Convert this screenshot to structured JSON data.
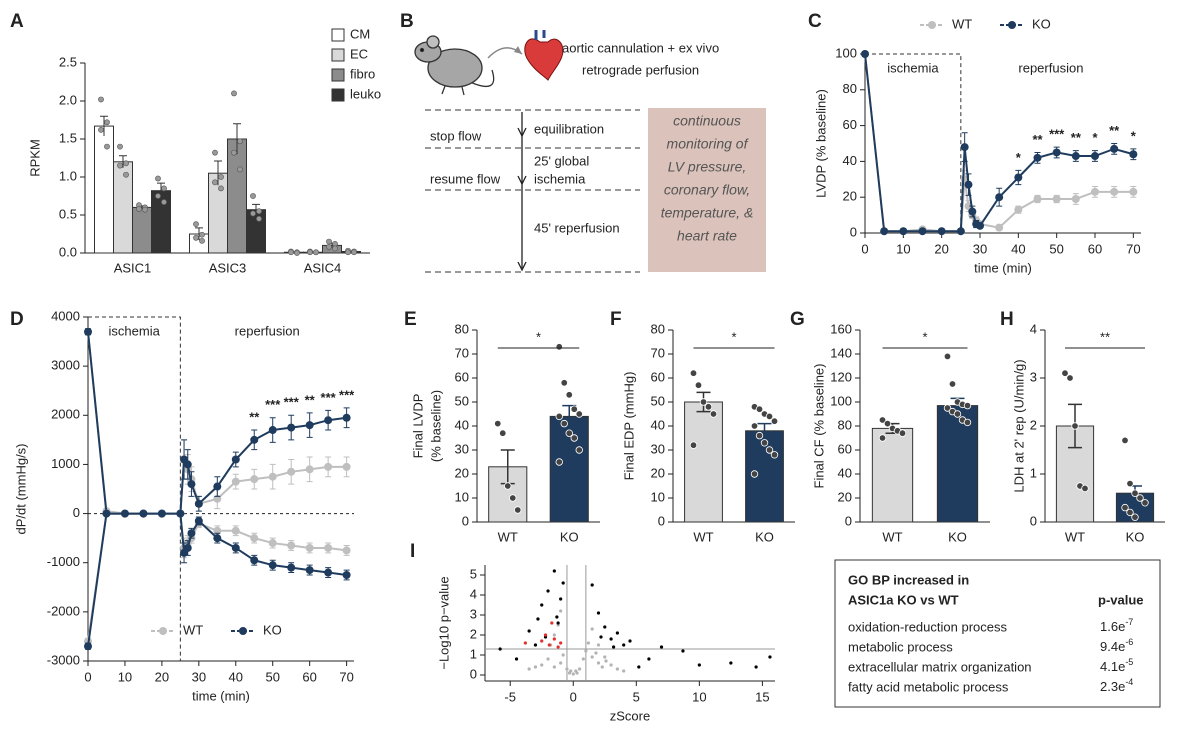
{
  "chart_data": [
    {
      "panel": "A",
      "type": "grouped_bar",
      "ylabel": "RPKM",
      "categories": [
        "ASIC1",
        "ASIC3",
        "ASIC4"
      ],
      "series": [
        {
          "name": "CM",
          "color": "#ffffff",
          "values": [
            1.67,
            0.25,
            0.01
          ],
          "errors": [
            0.13,
            0.08,
            0.005
          ],
          "points": [
            [
              2.02,
              1.72,
              1.62,
              1.4
            ],
            [
              0.38,
              0.24,
              0.2,
              0.16
            ],
            [
              0.02,
              0.01,
              0.01,
              0
            ]
          ]
        },
        {
          "name": "EC",
          "color": "#d9d9d9",
          "values": [
            1.2,
            1.05,
            0.01
          ],
          "errors": [
            0.08,
            0.16,
            0.005
          ],
          "points": [
            [
              1.4,
              1.18,
              1.15,
              1.03
            ],
            [
              1.32,
              1.0,
              0.93,
              0.85
            ],
            [
              0.02,
              0.01,
              0.01,
              0.01
            ]
          ]
        },
        {
          "name": "fibro",
          "color": "#8c8c8c",
          "values": [
            0.6,
            1.5,
            0.1
          ],
          "errors": [
            0.02,
            0.2,
            0.03
          ],
          "points": [
            [
              0.63,
              0.6,
              0.58,
              0.57
            ],
            [
              2.1,
              1.47,
              1.32,
              1.1
            ],
            [
              0.15,
              0.12,
              0.08,
              0.06
            ]
          ]
        },
        {
          "name": "leuko",
          "color": "#333333",
          "values": [
            0.82,
            0.57,
            0.02
          ],
          "errors": [
            0.1,
            0.07,
            0.005
          ],
          "points": [
            [
              0.98,
              0.85,
              0.75,
              0.67
            ],
            [
              0.75,
              0.55,
              0.52,
              0.45
            ],
            [
              0.03,
              0.02,
              0.01,
              0.01
            ]
          ]
        }
      ],
      "ylim": [
        0,
        2.5
      ],
      "yticks": [
        {
          "value": 0,
          "label": "0.0"
        },
        0.5,
        {
          "value": 1,
          "label": "1.0"
        },
        1.5,
        {
          "value": 2,
          "label": "2.0"
        },
        2.5
      ]
    },
    {
      "panel": "C",
      "type": "line",
      "ylabel": "LVDP (% baseline)",
      "xlabel": "time (min)",
      "legend": "top",
      "annotations": [
        "ischemia",
        "reperfusion"
      ],
      "ischemia_span": [
        0,
        25
      ],
      "x": [
        0,
        5,
        10,
        15,
        20,
        25,
        26,
        27,
        28,
        29,
        30,
        35,
        40,
        45,
        50,
        55,
        60,
        65,
        70
      ],
      "series": [
        {
          "name": "WT",
          "color": "#bfbfbf",
          "values": [
            100,
            1,
            1,
            2,
            1,
            1,
            30,
            15,
            10,
            7,
            5,
            3,
            13,
            19,
            19,
            19,
            23,
            23,
            23
          ],
          "errors": [
            0,
            0,
            0,
            0,
            0,
            0,
            5,
            3,
            2,
            2,
            1,
            1,
            2,
            2,
            2,
            3,
            3,
            3,
            3
          ]
        },
        {
          "name": "KO",
          "color": "#1f3c5e",
          "values": [
            100,
            1,
            1,
            1,
            1,
            1,
            48,
            27,
            12,
            5,
            4,
            20,
            31,
            42,
            45,
            43,
            43,
            47,
            44
          ],
          "errors": [
            0,
            0,
            0,
            0,
            0,
            0,
            8,
            6,
            3,
            2,
            1,
            5,
            4,
            3,
            3,
            3,
            3,
            3,
            3
          ]
        }
      ],
      "significance": [
        {
          "x": 40,
          "label": "*"
        },
        {
          "x": 45,
          "label": "**"
        },
        {
          "x": 50,
          "label": "***"
        },
        {
          "x": 55,
          "label": "**"
        },
        {
          "x": 60,
          "label": "*"
        },
        {
          "x": 65,
          "label": "**"
        },
        {
          "x": 70,
          "label": "*"
        }
      ],
      "xlim": [
        0,
        72
      ],
      "xticks": [
        0,
        10,
        20,
        30,
        40,
        50,
        60,
        70
      ],
      "ylim": [
        0,
        100
      ],
      "yticks": [
        0,
        20,
        40,
        60,
        80,
        100
      ]
    },
    {
      "panel": "D",
      "type": "line",
      "ylabel": "dP/dt  (mmHg/s)",
      "xlabel": "time (min)",
      "legend": "lower center",
      "zero_line": true,
      "annotations": [
        "ischemia",
        "reperfusion"
      ],
      "ischemia_span": [
        0,
        25
      ],
      "x": [
        0,
        5,
        10,
        15,
        20,
        25,
        26,
        27,
        28,
        30,
        35,
        40,
        45,
        50,
        55,
        60,
        65,
        70
      ],
      "series": [
        {
          "name": "WT",
          "color": "#bfbfbf",
          "values": [
            3700,
            50,
            0,
            0,
            0,
            0,
            1100,
            900,
            700,
            200,
            300,
            650,
            700,
            750,
            850,
            900,
            950,
            950
          ],
          "errors": [
            60,
            0,
            0,
            0,
            0,
            0,
            400,
            300,
            250,
            150,
            200,
            150,
            200,
            250,
            250,
            250,
            200,
            200
          ]
        },
        {
          "name": "KO",
          "color": "#1f3c5e",
          "values": [
            3700,
            0,
            0,
            0,
            0,
            0,
            1100,
            1000,
            600,
            200,
            550,
            1100,
            1500,
            1700,
            1750,
            1800,
            1900,
            1950
          ],
          "errors": [
            60,
            0,
            0,
            0,
            0,
            0,
            400,
            300,
            250,
            150,
            200,
            150,
            200,
            250,
            250,
            250,
            200,
            200
          ]
        },
        {
          "name": "WT",
          "color": "#bfbfbf",
          "values": [
            -2600,
            0,
            0,
            0,
            0,
            0,
            -700,
            -600,
            -500,
            -200,
            -350,
            -350,
            -500,
            -600,
            -650,
            -700,
            -700,
            -750
          ],
          "errors": [
            60,
            0,
            0,
            0,
            0,
            0,
            200,
            150,
            100,
            80,
            100,
            100,
            100,
            100,
            100,
            100,
            100,
            100
          ]
        },
        {
          "name": "KO",
          "color": "#1f3c5e",
          "values": [
            -2700,
            0,
            0,
            0,
            0,
            0,
            -800,
            -700,
            -400,
            -150,
            -500,
            -700,
            -950,
            -1050,
            -1100,
            -1150,
            -1200,
            -1250
          ],
          "errors": [
            60,
            0,
            0,
            0,
            0,
            0,
            200,
            150,
            100,
            80,
            100,
            100,
            100,
            100,
            100,
            100,
            100,
            100
          ]
        }
      ],
      "significance": [
        {
          "x": 45,
          "label": "**"
        },
        {
          "x": 50,
          "label": "***"
        },
        {
          "x": 55,
          "label": "***"
        },
        {
          "x": 60,
          "label": "**"
        },
        {
          "x": 65,
          "label": "***"
        },
        {
          "x": 70,
          "label": "***"
        }
      ],
      "xlim": [
        0,
        72
      ],
      "xticks": [
        0,
        10,
        20,
        30,
        40,
        50,
        60,
        70
      ],
      "ylim": [
        -3000,
        4000
      ],
      "yticks": [
        -3000,
        -2000,
        -1000,
        0,
        1000,
        2000,
        3000,
        4000
      ]
    },
    {
      "panel": "E",
      "type": "bar",
      "ylabel": [
        "Final LVDP",
        "(% baseline)"
      ],
      "categories": [
        "WT",
        "KO"
      ],
      "values": [
        23,
        44
      ],
      "errors": [
        7,
        4.5
      ],
      "colors": [
        "#d9d9d9",
        "#1f3c5e"
      ],
      "significance": "*",
      "points": [
        [
          41,
          37,
          15,
          10,
          5
        ],
        [
          73,
          58,
          53,
          47,
          45,
          44,
          41,
          37,
          35,
          30,
          25
        ]
      ],
      "ylim": [
        0,
        80
      ],
      "yticks": [
        0,
        10,
        20,
        30,
        40,
        50,
        60,
        70,
        80
      ]
    },
    {
      "panel": "F",
      "type": "bar",
      "ylabel": [
        "Final EDP (mmHg)"
      ],
      "categories": [
        "WT",
        "KO"
      ],
      "values": [
        50,
        38
      ],
      "errors": [
        4,
        3
      ],
      "colors": [
        "#d9d9d9",
        "#1f3c5e"
      ],
      "significance": "*",
      "points": [
        [
          62,
          57,
          50,
          48,
          45,
          32
        ],
        [
          48,
          47,
          45,
          44,
          42,
          40,
          36,
          33,
          30,
          28,
          20
        ]
      ],
      "ylim": [
        0,
        80
      ],
      "yticks": [
        0,
        10,
        20,
        30,
        40,
        50,
        60,
        70,
        80
      ]
    },
    {
      "panel": "G",
      "type": "bar",
      "ylabel": [
        "Final CF (% baseline)"
      ],
      "categories": [
        "WT",
        "KO"
      ],
      "values": [
        78,
        97
      ],
      "errors": [
        4,
        6
      ],
      "colors": [
        "#d9d9d9",
        "#1f3c5e"
      ],
      "significance": "*",
      "points": [
        [
          85,
          82,
          78,
          76,
          74,
          70
        ],
        [
          138,
          115,
          100,
          98,
          97,
          95,
          92,
          90,
          85,
          83
        ]
      ],
      "ylim": [
        0,
        160
      ],
      "yticks": [
        0,
        20,
        40,
        60,
        80,
        100,
        120,
        140,
        160
      ]
    },
    {
      "panel": "H",
      "type": "bar",
      "ylabel": [
        "LDH at 2' rep (U/min/g)"
      ],
      "categories": [
        "WT",
        "KO"
      ],
      "values": [
        2.0,
        0.6
      ],
      "errors": [
        0.45,
        0.15
      ],
      "colors": [
        "#d9d9d9",
        "#1f3c5e"
      ],
      "significance": "**",
      "points": [
        [
          3.1,
          3.0,
          2.0,
          0.75,
          0.7
        ],
        [
          1.7,
          0.8,
          0.6,
          0.5,
          0.4,
          0.3,
          0.2,
          0.1
        ]
      ],
      "ylim": [
        0,
        4
      ],
      "yticks": [
        0,
        1,
        2,
        3,
        4
      ]
    },
    {
      "panel": "I",
      "type": "scatter",
      "ylabel": "−Log10 p−value",
      "xlabel": "zScore",
      "hline": 1.3,
      "vlines": [
        -0.5,
        1
      ],
      "series": [
        {
          "color": "#b3b3b3",
          "x": [
            -2.5,
            -2,
            -1.8,
            -1.5,
            -1.2,
            -1,
            -0.8,
            -0.5,
            -0.3,
            0,
            0.3,
            0.5,
            0.8,
            1,
            1.2,
            1.5,
            1.8,
            2,
            2.3,
            2.6,
            3,
            3.5,
            4,
            -3,
            -3.5,
            -1.5,
            -1,
            1.5,
            2,
            2.5,
            0.2,
            -0.2
          ],
          "values": [
            0.5,
            0.8,
            1.5,
            2,
            2.5,
            3.2,
            1,
            0.3,
            0.1,
            0.05,
            0.1,
            0.3,
            0.8,
            1.2,
            1.6,
            0.9,
            1.1,
            0.6,
            0.4,
            0.7,
            0.5,
            0.3,
            0.2,
            0.4,
            0.3,
            0.4,
            0.6,
            2.3,
            1.5,
            0.9,
            0.2,
            0.2
          ]
        },
        {
          "color": "#000000",
          "x": [
            -5.8,
            -4.5,
            -3.5,
            -3,
            -2.8,
            -2.5,
            -2.2,
            -2,
            -1.5,
            -1.3,
            -1,
            -0.8,
            1.5,
            2,
            2.5,
            3,
            3.5,
            4,
            4.5,
            5.2,
            6,
            7,
            8.7,
            10,
            12.5,
            14.5,
            15.6,
            -1.2,
            2.2,
            3.2
          ],
          "values": [
            1.3,
            0.8,
            2.2,
            1.5,
            2.8,
            3.5,
            1.9,
            4.2,
            5.2,
            2.9,
            3.8,
            4.6,
            4.5,
            3.1,
            2.4,
            1.8,
            2.1,
            1.5,
            1.7,
            0.4,
            0.8,
            1.4,
            1.2,
            0.5,
            0.6,
            0.4,
            0.9,
            2.6,
            1.9,
            1.4
          ]
        },
        {
          "color": "#e03030",
          "x": [
            -3.8,
            -2.5,
            -2.2,
            -1.9,
            -1.7,
            -1.5,
            -1.2,
            -1
          ],
          "values": [
            1.6,
            1.7,
            2.0,
            1.5,
            2.6,
            1.8,
            1.4,
            1.6
          ]
        }
      ],
      "xlim": [
        -7,
        16
      ],
      "xticks": [
        -5,
        0,
        5,
        10,
        15
      ],
      "ylim": [
        -0.3,
        5.5
      ],
      "yticks": [
        0,
        1,
        2,
        3,
        4,
        5
      ]
    }
  ],
  "diagram": {
    "panel": "B",
    "caption": [
      "aortic cannulation + ex vivo",
      "retrograde perfusion"
    ],
    "left_labels": [
      "stop flow",
      "resume flow"
    ],
    "steps": [
      [
        "equilibration"
      ],
      [
        "25' global",
        "ischemia"
      ],
      [
        "45' reperfusion"
      ]
    ],
    "box": [
      "continuous",
      "monitoring of",
      "LV pressure,",
      "coronary flow,",
      "temperature, &",
      "heart rate"
    ]
  },
  "go_table": {
    "title": [
      "GO BP increased in",
      "ASIC1a KO vs WT"
    ],
    "header": "p-value",
    "rows": [
      {
        "term": "oxidation-reduction process",
        "base": "1.6e",
        "exp": "-7"
      },
      {
        "term": "metabolic process",
        "base": "9.4e",
        "exp": "-6"
      },
      {
        "term": "extracellular matrix organization",
        "base": "4.1e",
        "exp": "-5"
      },
      {
        "term": "fatty acid metabolic process",
        "base": "2.3e",
        "exp": "-4"
      }
    ]
  }
}
